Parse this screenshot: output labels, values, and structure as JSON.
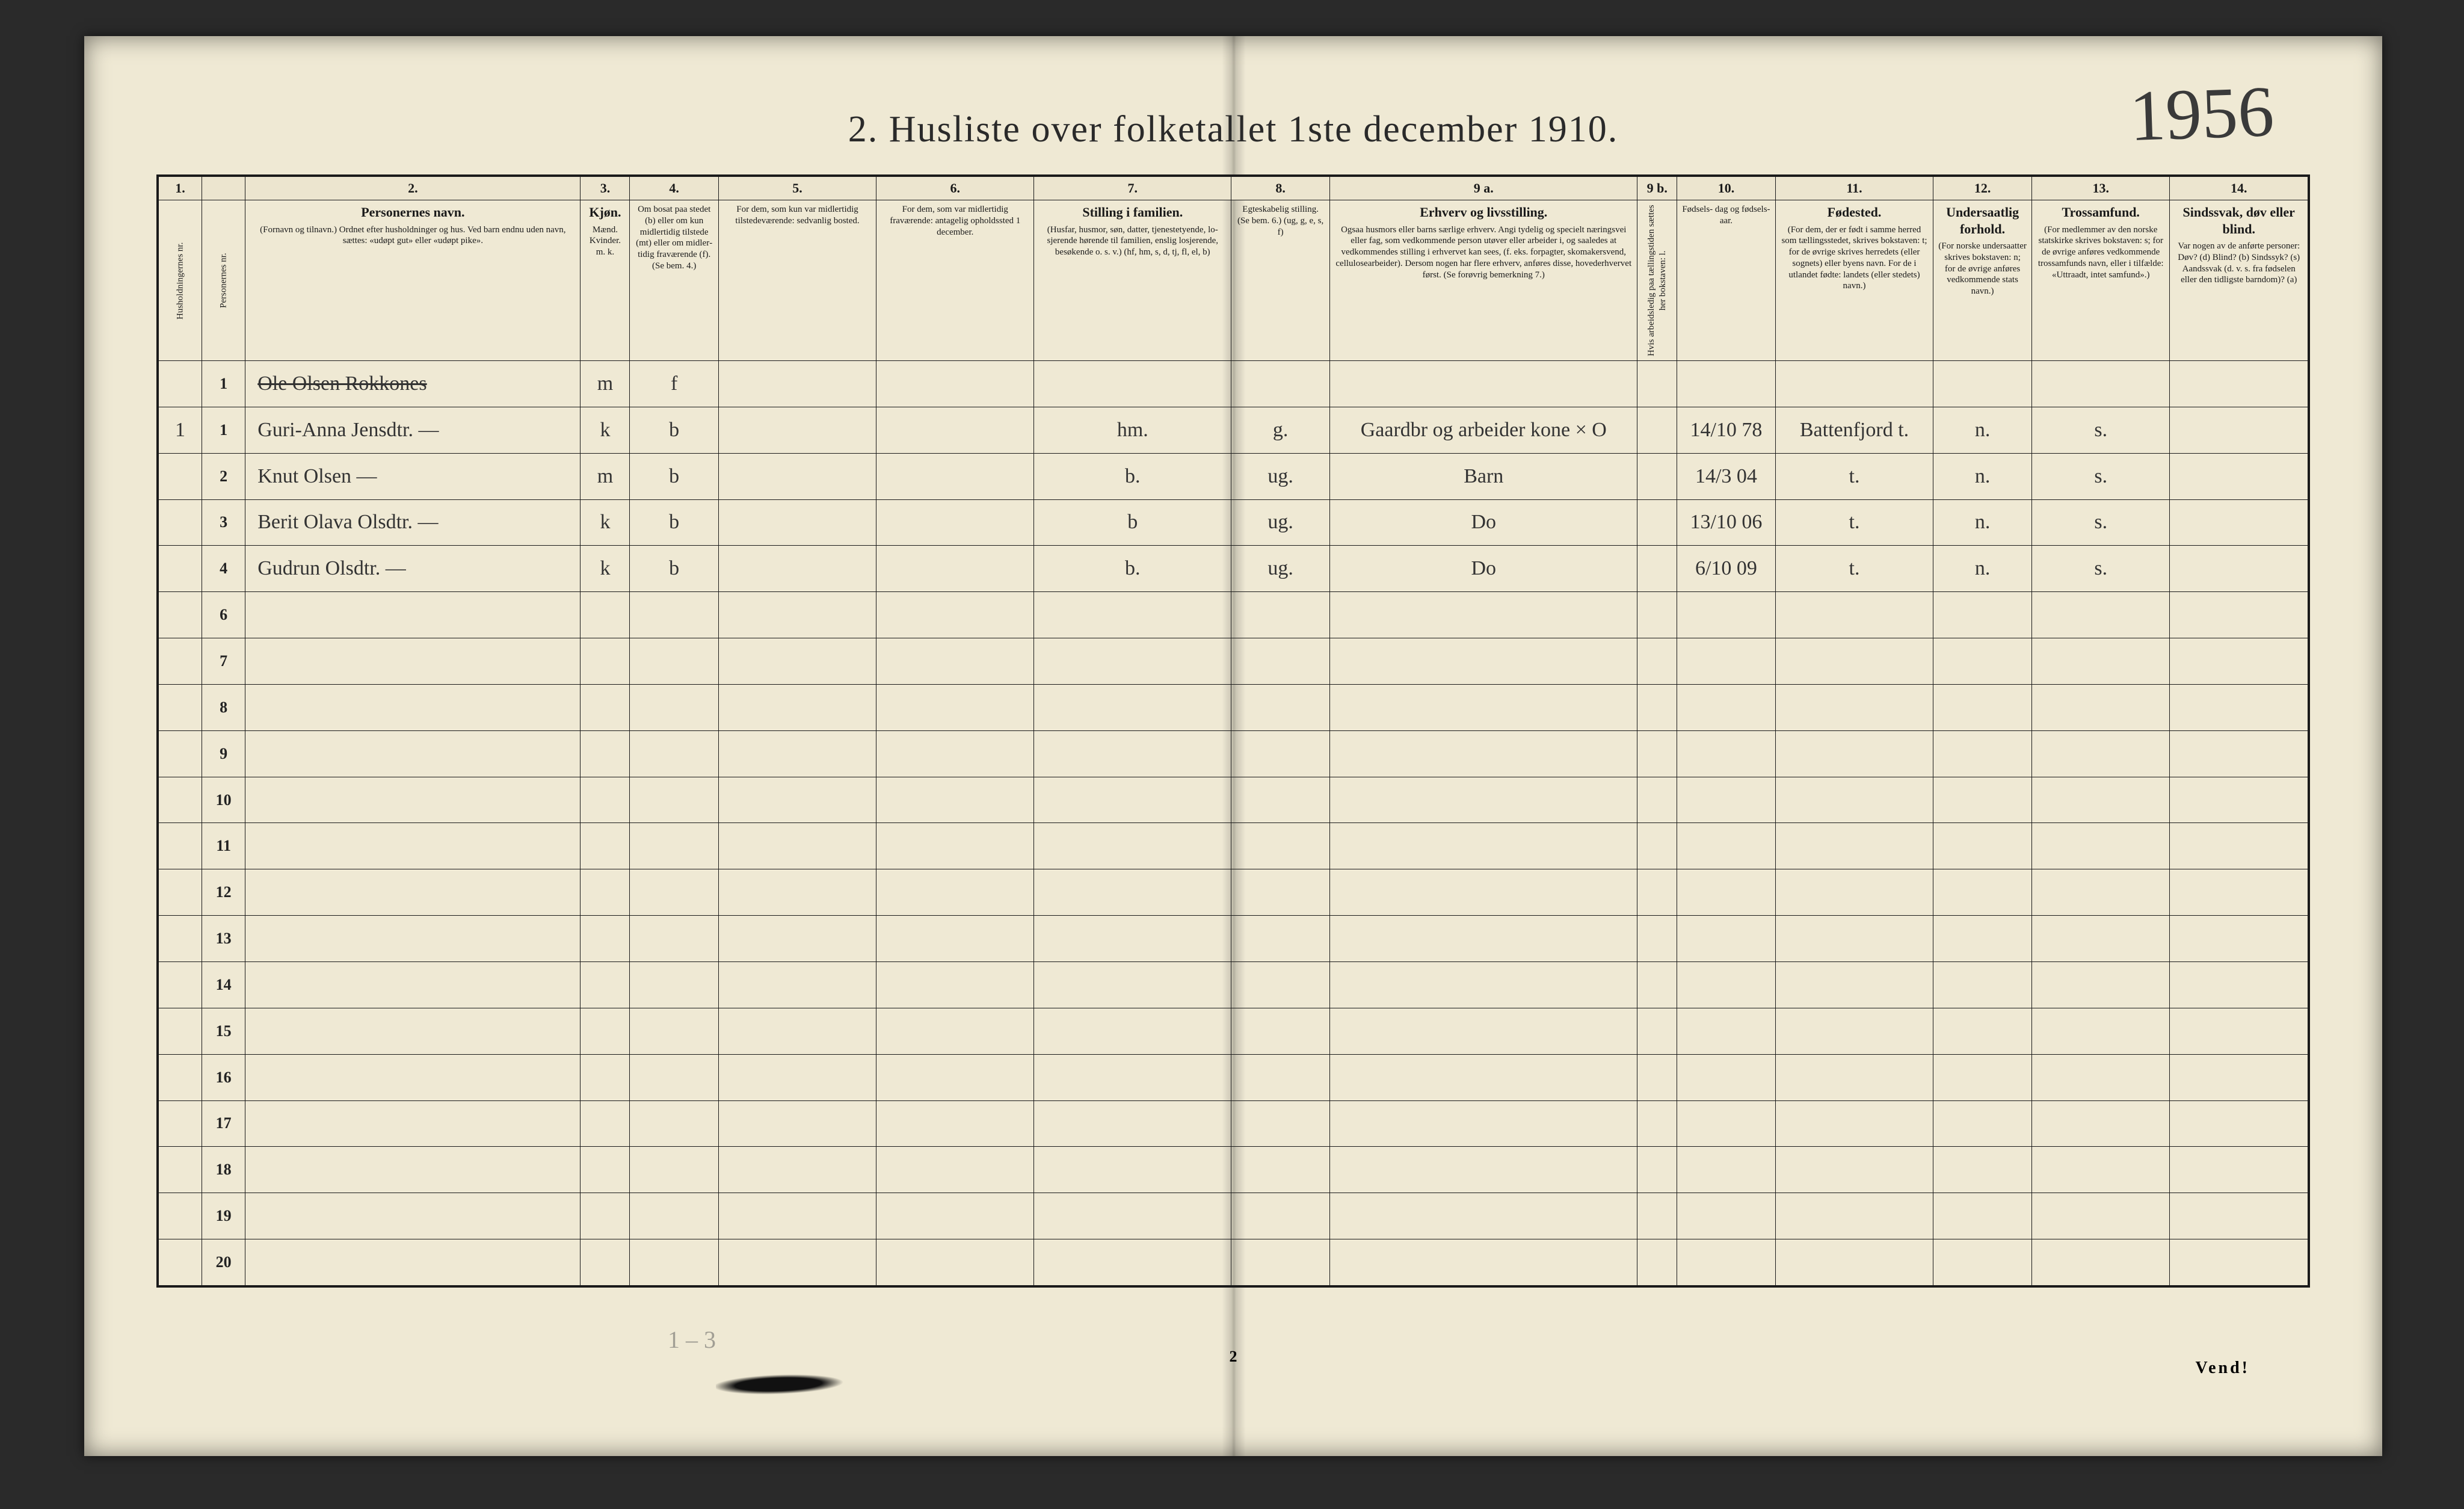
{
  "title": "2.  Husliste over folketallet 1ste december 1910.",
  "margin_year": "1956",
  "footer_page_number": "2",
  "footer_vend": "Vend!",
  "margin_note_bottom": "1 – 3",
  "col_widths_pct": [
    2.2,
    2.2,
    17,
    2.5,
    4.5,
    8,
    8,
    10,
    5,
    15.6,
    2,
    5,
    8,
    5,
    7,
    7
  ],
  "col_numbers": [
    "1.",
    "",
    "2.",
    "3.",
    "4.",
    "5.",
    "6.",
    "7.",
    "8.",
    "9 a.",
    "9 b.",
    "10.",
    "11.",
    "12.",
    "13.",
    "14."
  ],
  "headers": [
    {
      "bold": "",
      "text": "Husholdningernes nr."
    },
    {
      "bold": "",
      "text": "Personernes nr."
    },
    {
      "bold": "Personernes navn.",
      "text": "(Fornavn og tilnavn.)\nOrdnet efter husholdninger og hus.\nVed barn endnu uden navn, sættes: «udøpt gut» eller «udøpt pike»."
    },
    {
      "bold": "Kjøn.",
      "text": "Mænd.  Kvinder.\nm.  k."
    },
    {
      "bold": "",
      "text": "Om bosat paa stedet (b) eller om kun midler­tidig tilstede (mt) eller om midler­tidig fra­værende (f).\n(Se bem. 4.)"
    },
    {
      "bold": "",
      "text": "For dem, som kun var midlertidig tilstede­værende:\nsedvanlig bosted."
    },
    {
      "bold": "",
      "text": "For dem, som var midlertidig fraværende:\nantagelig opholdssted 1 december."
    },
    {
      "bold": "Stilling i familien.",
      "text": "(Husfar, husmor, søn, datter, tjenestetyende, lo­sjerende hørende til familien, enslig losjerende, besøkende o. s. v.)\n(hf, hm, s, d, tj, fl, el, b)"
    },
    {
      "bold": "",
      "text": "Egteska­belig stilling.\n(Se bem. 6.)\n(ug, g, e, s, f)"
    },
    {
      "bold": "Erhverv og livsstilling.",
      "text": "Ogsaa husmors eller barns særlige erhverv. Angi tydelig og specielt næringsvei eller fag, som vedkommende person utøver eller arbeider i, og saaledes at vedkommendes stilling i erhvervet kan sees, (f. eks. forpagter, skomakersvend, cellulose­arbeider). Dersom nogen har flere erhverv, anføres disse, hovederhvervet først.\n(Se forøvrig bemerkning 7.)"
    },
    {
      "bold": "",
      "text": "Hvis arbeidsledig paa tællingstiden sættes her bokstaven: l."
    },
    {
      "bold": "",
      "text": "Fødsels-\ndag\nog\nfødsels-\naar."
    },
    {
      "bold": "Fødested.",
      "text": "(For dem, der er født i samme herred som tællingsstedet, skrives bokstaven: t; for de øvrige skrives herredets (eller sognets) eller byens navn. For de i utlandet fødte: landets (eller stedets) navn.)"
    },
    {
      "bold": "Undersaatlig forhold.",
      "text": "(For norske under­saatter skrives bokstaven: n; for de øvrige anføres vedkom­mende stats navn.)"
    },
    {
      "bold": "Trossamfund.",
      "text": "(For medlemmer av den norske statskirke skrives bokstaven: s; for de øvrige anføres vedkommende tros­samfunds navn, eller i til­fælde: «Uttraadt, intet samfund».)"
    },
    {
      "bold": "Sindssvak, døv eller blind.",
      "text": "Var nogen av de anførte personer:\nDøv?        (d)\nBlind?      (b)\nSindssyk?  (s)\nAandssvak (d. v. s. fra fødselen eller den tid­ligste barndom)?  (a)"
    }
  ],
  "rows": [
    {
      "hh": "",
      "pn": "1",
      "name": "Ole Olsen Rokkones",
      "strike": true,
      "sex": "m",
      "bosat": "f",
      "c5": "",
      "c6": "",
      "fam": "",
      "eg": "",
      "erhverv": "",
      "l": "",
      "dob": "",
      "birthplace": "",
      "und": "",
      "tro": "",
      "sind": ""
    },
    {
      "hh": "1",
      "pn": "1",
      "name": "Guri-Anna Jensdtr.   —",
      "strike": false,
      "sex": "k",
      "bosat": "b",
      "c5": "",
      "c6": "",
      "fam": "hm.",
      "eg": "g.",
      "erhverv": "Gaardbr og arbeider kone × O",
      "l": "",
      "dob": "14/10 78",
      "birthplace": "Battenfjord t.",
      "und": "n.",
      "tro": "s.",
      "sind": ""
    },
    {
      "hh": "",
      "pn": "2",
      "name": "Knut Olsen              —",
      "strike": false,
      "sex": "m",
      "bosat": "b",
      "c5": "",
      "c6": "",
      "fam": "b.",
      "eg": "ug.",
      "erhverv": "Barn",
      "l": "",
      "dob": "14/3 04",
      "birthplace": "t.",
      "und": "n.",
      "tro": "s.",
      "sind": ""
    },
    {
      "hh": "",
      "pn": "3",
      "name": "Berit Olava Olsdtr.  —",
      "strike": false,
      "sex": "k",
      "bosat": "b",
      "c5": "",
      "c6": "",
      "fam": "b",
      "eg": "ug.",
      "erhverv": "Do",
      "l": "",
      "dob": "13/10 06",
      "birthplace": "t.",
      "und": "n.",
      "tro": "s.",
      "sind": ""
    },
    {
      "hh": "",
      "pn": "4",
      "name": "Gudrun Olsdtr.        —",
      "strike": false,
      "sex": "k",
      "bosat": "b",
      "c5": "",
      "c6": "",
      "fam": "b.",
      "eg": "ug.",
      "erhverv": "Do",
      "l": "",
      "dob": "6/10 09",
      "birthplace": "t.",
      "und": "n.",
      "tro": "s.",
      "sind": ""
    }
  ],
  "empty_row_start": 6,
  "empty_row_end": 20
}
